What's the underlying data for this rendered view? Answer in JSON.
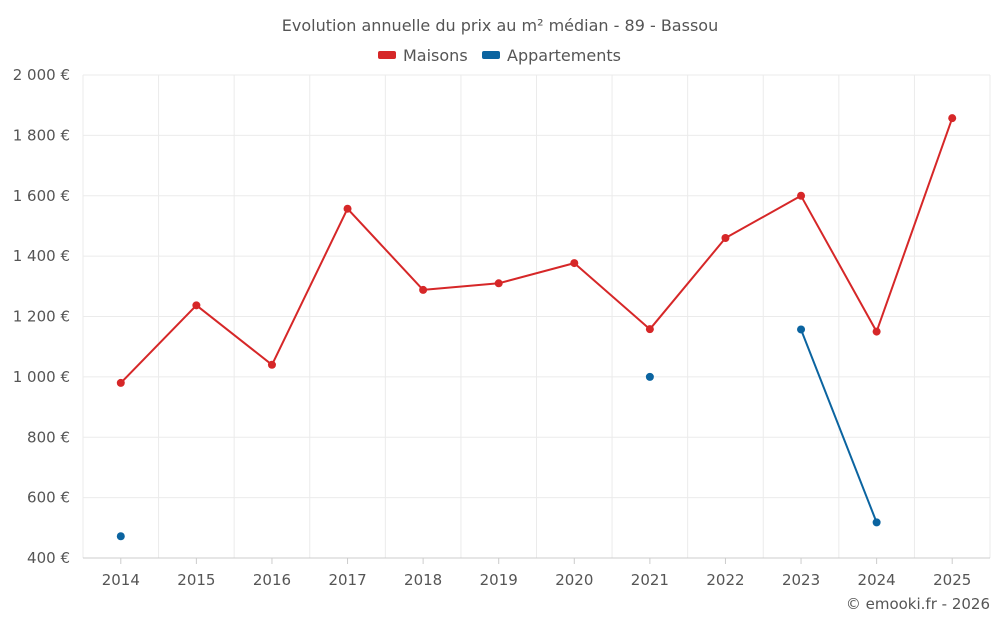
{
  "chart_data": {
    "type": "line",
    "title": "Evolution annuelle du prix au m² médian - 89 - Bassou",
    "credit": "© emooki.fr - 2026",
    "categories": [
      "2014",
      "2015",
      "2016",
      "2017",
      "2018",
      "2019",
      "2020",
      "2021",
      "2022",
      "2023",
      "2024",
      "2025"
    ],
    "yticks": [
      "400 €",
      "600 €",
      "800 €",
      "1 000 €",
      "1 200 €",
      "1 400 €",
      "1 600 €",
      "1 800 €",
      "2 000 €"
    ],
    "ylim": [
      400,
      2000
    ],
    "legend_position": "top-center",
    "grid": true,
    "series": [
      {
        "name": "Maisons",
        "color": "#d62728",
        "values": [
          980,
          1237,
          1040,
          1557,
          1288,
          1310,
          1377,
          1158,
          1460,
          1600,
          1150,
          1857
        ]
      },
      {
        "name": "Appartements",
        "color": "#0b64a0",
        "values": [
          472,
          null,
          null,
          null,
          null,
          null,
          null,
          1000,
          null,
          1157,
          518,
          null
        ]
      }
    ]
  }
}
